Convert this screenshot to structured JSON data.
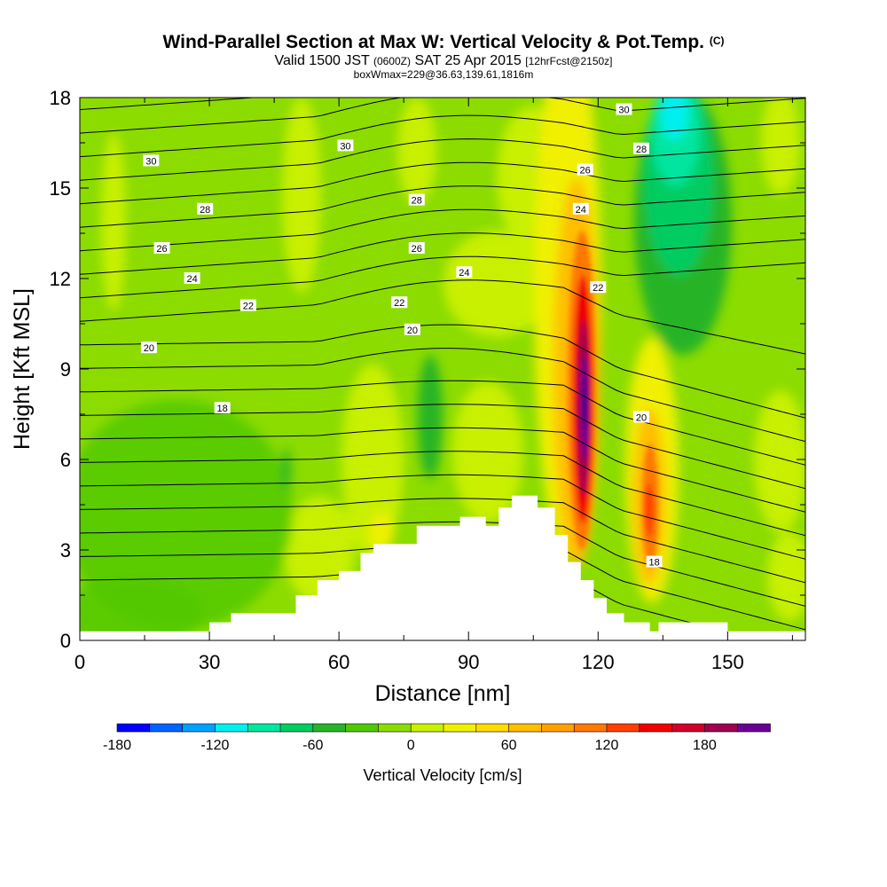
{
  "header": {
    "title": "Wind-Parallel Section at Max W: Vertical Velocity & Pot.Temp.",
    "copyright": "(C)",
    "valid_prefix": "Valid 1500 JST",
    "valid_utc": "(0600Z)",
    "valid_date": "SAT 25 Apr 2015",
    "forecast": "[12hrFcst@2150z]",
    "box_info": "boxWmax=229@36.63,139.61,1816m"
  },
  "chart_data": {
    "type": "heatmap",
    "xlabel": "Distance [nm]",
    "ylabel": "Height [Kft MSL]",
    "xlim": [
      0,
      168
    ],
    "ylim": [
      0,
      18
    ],
    "x_ticks": [
      0,
      30,
      60,
      90,
      120,
      150
    ],
    "y_ticks": [
      0,
      3,
      6,
      9,
      12,
      15,
      18
    ],
    "colorbar": {
      "label": "Vertical Velocity [cm/s]",
      "min": -180,
      "max": 220,
      "tick_values": [
        -180,
        -120,
        -60,
        0,
        60,
        120,
        180
      ],
      "tick_labels": [
        "-180",
        "-120",
        "-60",
        "0",
        "60",
        "120",
        "180"
      ],
      "colors": [
        "#0000ff",
        "#0064ff",
        "#00a0ff",
        "#00f0f0",
        "#00e6a0",
        "#00cc60",
        "#28b428",
        "#50c800",
        "#8cdc00",
        "#c8f000",
        "#f0f000",
        "#ffdc00",
        "#ffbe00",
        "#ffa000",
        "#ff7800",
        "#ff4000",
        "#f00000",
        "#d0002a",
        "#a00050",
        "#6a0096"
      ]
    },
    "terrain_profile": [
      [
        0,
        0.3
      ],
      [
        30,
        0.3
      ],
      [
        30,
        0.6
      ],
      [
        35,
        0.6
      ],
      [
        35,
        0.9
      ],
      [
        50,
        0.9
      ],
      [
        50,
        1.5
      ],
      [
        55,
        1.5
      ],
      [
        55,
        2.0
      ],
      [
        60,
        2.0
      ],
      [
        60,
        2.3
      ],
      [
        65,
        2.3
      ],
      [
        65,
        2.9
      ],
      [
        68,
        2.9
      ],
      [
        68,
        3.2
      ],
      [
        78,
        3.2
      ],
      [
        78,
        3.8
      ],
      [
        88,
        3.8
      ],
      [
        88,
        4.1
      ],
      [
        94,
        4.1
      ],
      [
        94,
        3.8
      ],
      [
        97,
        3.8
      ],
      [
        97,
        4.4
      ],
      [
        100,
        4.4
      ],
      [
        100,
        4.8
      ],
      [
        106,
        4.8
      ],
      [
        106,
        4.4
      ],
      [
        110,
        4.4
      ],
      [
        110,
        3.5
      ],
      [
        113,
        3.5
      ],
      [
        113,
        2.6
      ],
      [
        116,
        2.6
      ],
      [
        116,
        2.0
      ],
      [
        119,
        2.0
      ],
      [
        119,
        1.4
      ],
      [
        122,
        1.4
      ],
      [
        122,
        0.9
      ],
      [
        126,
        0.9
      ],
      [
        126,
        0.6
      ],
      [
        132,
        0.6
      ],
      [
        132,
        0.3
      ],
      [
        134,
        0.3
      ],
      [
        134,
        0.6
      ],
      [
        150,
        0.6
      ],
      [
        150,
        0.3
      ],
      [
        168,
        0.3
      ]
    ],
    "theta_contour_labels": [
      {
        "text": "30",
        "x": 16.5,
        "y": 15.9
      },
      {
        "text": "30",
        "x": 61.5,
        "y": 16.4
      },
      {
        "text": "30",
        "x": 126,
        "y": 17.6
      },
      {
        "text": "28",
        "x": 29,
        "y": 14.3
      },
      {
        "text": "28",
        "x": 78,
        "y": 14.6
      },
      {
        "text": "28",
        "x": 130,
        "y": 16.3
      },
      {
        "text": "26",
        "x": 19,
        "y": 13.0
      },
      {
        "text": "26",
        "x": 78,
        "y": 13.0
      },
      {
        "text": "26",
        "x": 117,
        "y": 15.6
      },
      {
        "text": "24",
        "x": 26,
        "y": 12.0
      },
      {
        "text": "24",
        "x": 89,
        "y": 12.2
      },
      {
        "text": "24",
        "x": 116,
        "y": 14.3
      },
      {
        "text": "22",
        "x": 39,
        "y": 11.1
      },
      {
        "text": "22",
        "x": 74,
        "y": 11.2
      },
      {
        "text": "22",
        "x": 120,
        "y": 11.7
      },
      {
        "text": "20",
        "x": 16,
        "y": 9.7
      },
      {
        "text": "20",
        "x": 77,
        "y": 10.3
      },
      {
        "text": "20",
        "x": 130,
        "y": 7.4
      },
      {
        "text": "18",
        "x": 33,
        "y": 7.7
      },
      {
        "text": "18",
        "x": 133,
        "y": 2.6
      }
    ]
  }
}
